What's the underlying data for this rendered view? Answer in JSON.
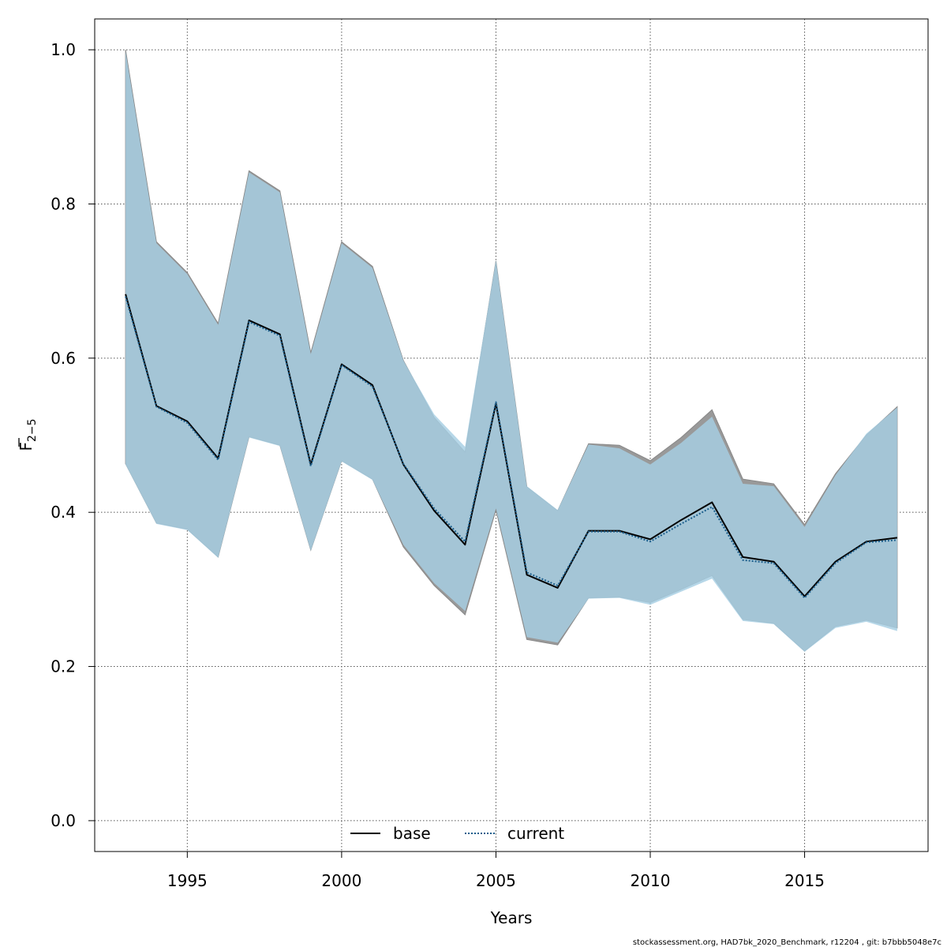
{
  "chart_data": {
    "type": "area",
    "xlabel": "Years",
    "ylabel_main": "F",
    "ylabel_sub": "2−5",
    "xlim": [
      1992,
      2019
    ],
    "ylim": [
      -0.04,
      1.04
    ],
    "xticks": [
      1995,
      2000,
      2005,
      2010,
      2015
    ],
    "yticks": [
      0.0,
      0.2,
      0.4,
      0.6,
      0.8,
      1.0
    ],
    "ytick_labels": [
      "0.0",
      "0.2",
      "0.4",
      "0.6",
      "0.8",
      "1.0"
    ],
    "grid": true,
    "legend_position": "bottom",
    "x": [
      1993,
      1994,
      1995,
      1996,
      1997,
      1998,
      1999,
      2000,
      2001,
      2002,
      2003,
      2004,
      2005,
      2006,
      2007,
      2008,
      2009,
      2010,
      2011,
      2012,
      2013,
      2014,
      2015,
      2016,
      2017,
      2018
    ],
    "series": [
      {
        "name": "base",
        "line_color": "#000000",
        "line_style": "solid",
        "band_color": "#999999",
        "values": [
          0.683,
          0.538,
          0.518,
          0.47,
          0.649,
          0.631,
          0.462,
          0.592,
          0.565,
          0.462,
          0.402,
          0.358,
          0.541,
          0.319,
          0.302,
          0.376,
          0.376,
          0.365,
          0.39,
          0.413,
          0.342,
          0.336,
          0.291,
          0.336,
          0.362,
          0.367
        ],
        "lower": [
          0.463,
          0.386,
          0.378,
          0.342,
          0.498,
          0.487,
          0.351,
          0.467,
          0.443,
          0.355,
          0.305,
          0.267,
          0.403,
          0.235,
          0.228,
          0.289,
          0.29,
          0.283,
          0.3,
          0.318,
          0.261,
          0.256,
          0.22,
          0.252,
          0.26,
          0.25
        ],
        "upper": [
          1.0,
          0.751,
          0.711,
          0.645,
          0.843,
          0.817,
          0.607,
          0.751,
          0.719,
          0.597,
          0.523,
          0.478,
          0.726,
          0.433,
          0.402,
          0.489,
          0.487,
          0.467,
          0.497,
          0.533,
          0.443,
          0.437,
          0.384,
          0.45,
          0.5,
          0.537
        ]
      },
      {
        "name": "current",
        "line_color": "#1b5e8c",
        "line_style": "dotted",
        "band_color": "#a6cee3",
        "values": [
          0.68,
          0.537,
          0.516,
          0.468,
          0.647,
          0.629,
          0.46,
          0.591,
          0.563,
          0.463,
          0.405,
          0.362,
          0.543,
          0.322,
          0.305,
          0.375,
          0.375,
          0.362,
          0.385,
          0.407,
          0.338,
          0.334,
          0.289,
          0.334,
          0.361,
          0.364
        ],
        "lower": [
          0.462,
          0.385,
          0.377,
          0.341,
          0.497,
          0.486,
          0.35,
          0.466,
          0.442,
          0.358,
          0.308,
          0.272,
          0.405,
          0.238,
          0.231,
          0.288,
          0.289,
          0.28,
          0.297,
          0.314,
          0.259,
          0.255,
          0.219,
          0.25,
          0.258,
          0.246
        ],
        "upper": [
          0.998,
          0.749,
          0.709,
          0.643,
          0.841,
          0.815,
          0.605,
          0.749,
          0.717,
          0.597,
          0.527,
          0.485,
          0.727,
          0.434,
          0.403,
          0.488,
          0.483,
          0.462,
          0.49,
          0.524,
          0.437,
          0.434,
          0.381,
          0.448,
          0.502,
          0.536
        ]
      }
    ]
  },
  "footer_text": "stockassessment.org, HAD7bk_2020_Benchmark, r12204 , git: b7bbb5048e7c"
}
